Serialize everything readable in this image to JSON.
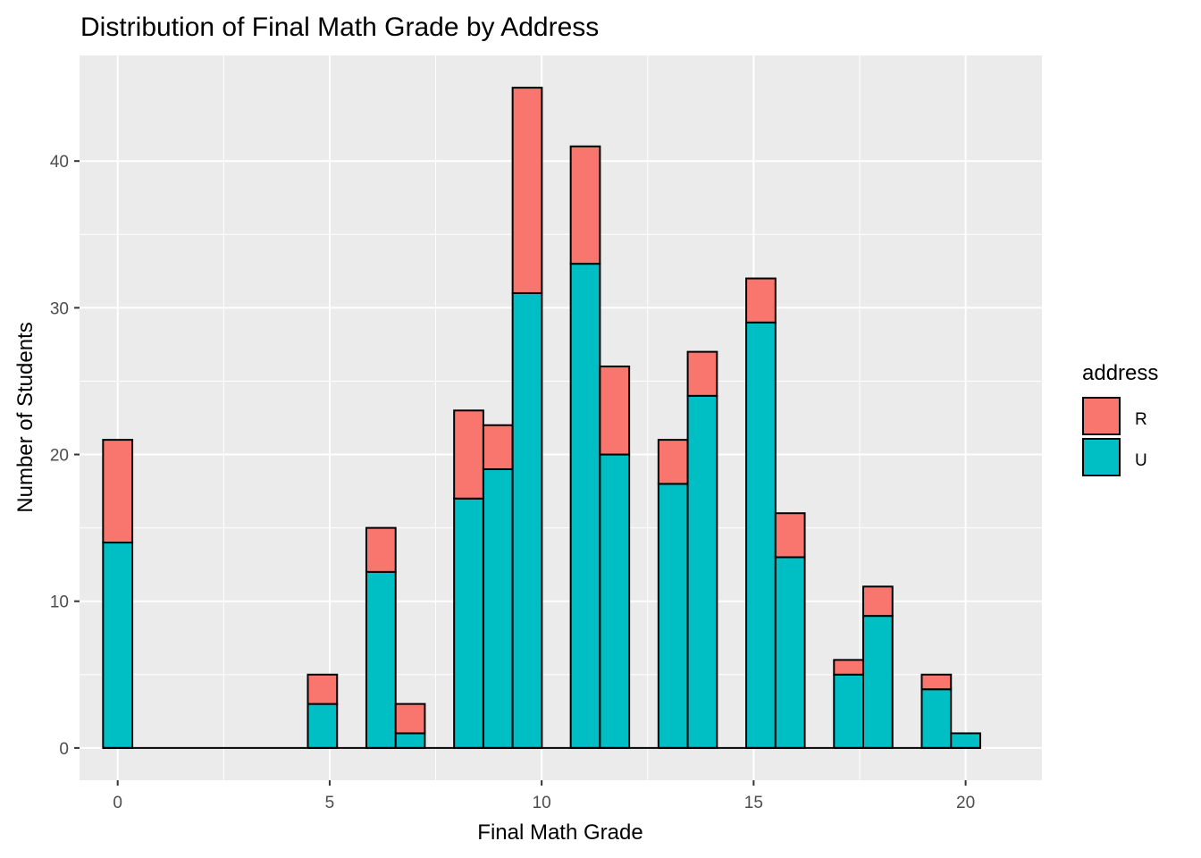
{
  "chart_data": {
    "type": "bar",
    "stacked": true,
    "title": "Distribution of Final Math Grade by Address",
    "xlabel": "Final Math Grade",
    "ylabel": "Number of Students",
    "xlim": [
      -0.9,
      21.8
    ],
    "ylim": [
      -2.2,
      47.2
    ],
    "xticks": [
      0,
      5,
      10,
      15,
      20
    ],
    "yticks": [
      0,
      10,
      20,
      30,
      40
    ],
    "x": [
      0,
      4.83,
      6.21,
      6.9,
      8.28,
      8.97,
      9.66,
      11.03,
      11.72,
      13.1,
      13.79,
      15.17,
      15.86,
      17.24,
      17.93,
      19.31,
      20.0
    ],
    "series": [
      {
        "name": "U",
        "color": "#00BFC4",
        "values": [
          14,
          3,
          12,
          1,
          17,
          19,
          31,
          33,
          20,
          18,
          24,
          29,
          13,
          5,
          9,
          4,
          1
        ]
      },
      {
        "name": "R",
        "color": "#F8766D",
        "values": [
          7,
          2,
          3,
          2,
          6,
          3,
          14,
          8,
          6,
          3,
          3,
          3,
          3,
          1,
          2,
          1,
          0
        ]
      }
    ],
    "grid": true,
    "legend": {
      "title": "address",
      "placement": "right",
      "entries": [
        "R",
        "U"
      ]
    },
    "panel_color": "#EBEBEB",
    "outline_color": "#000000"
  }
}
